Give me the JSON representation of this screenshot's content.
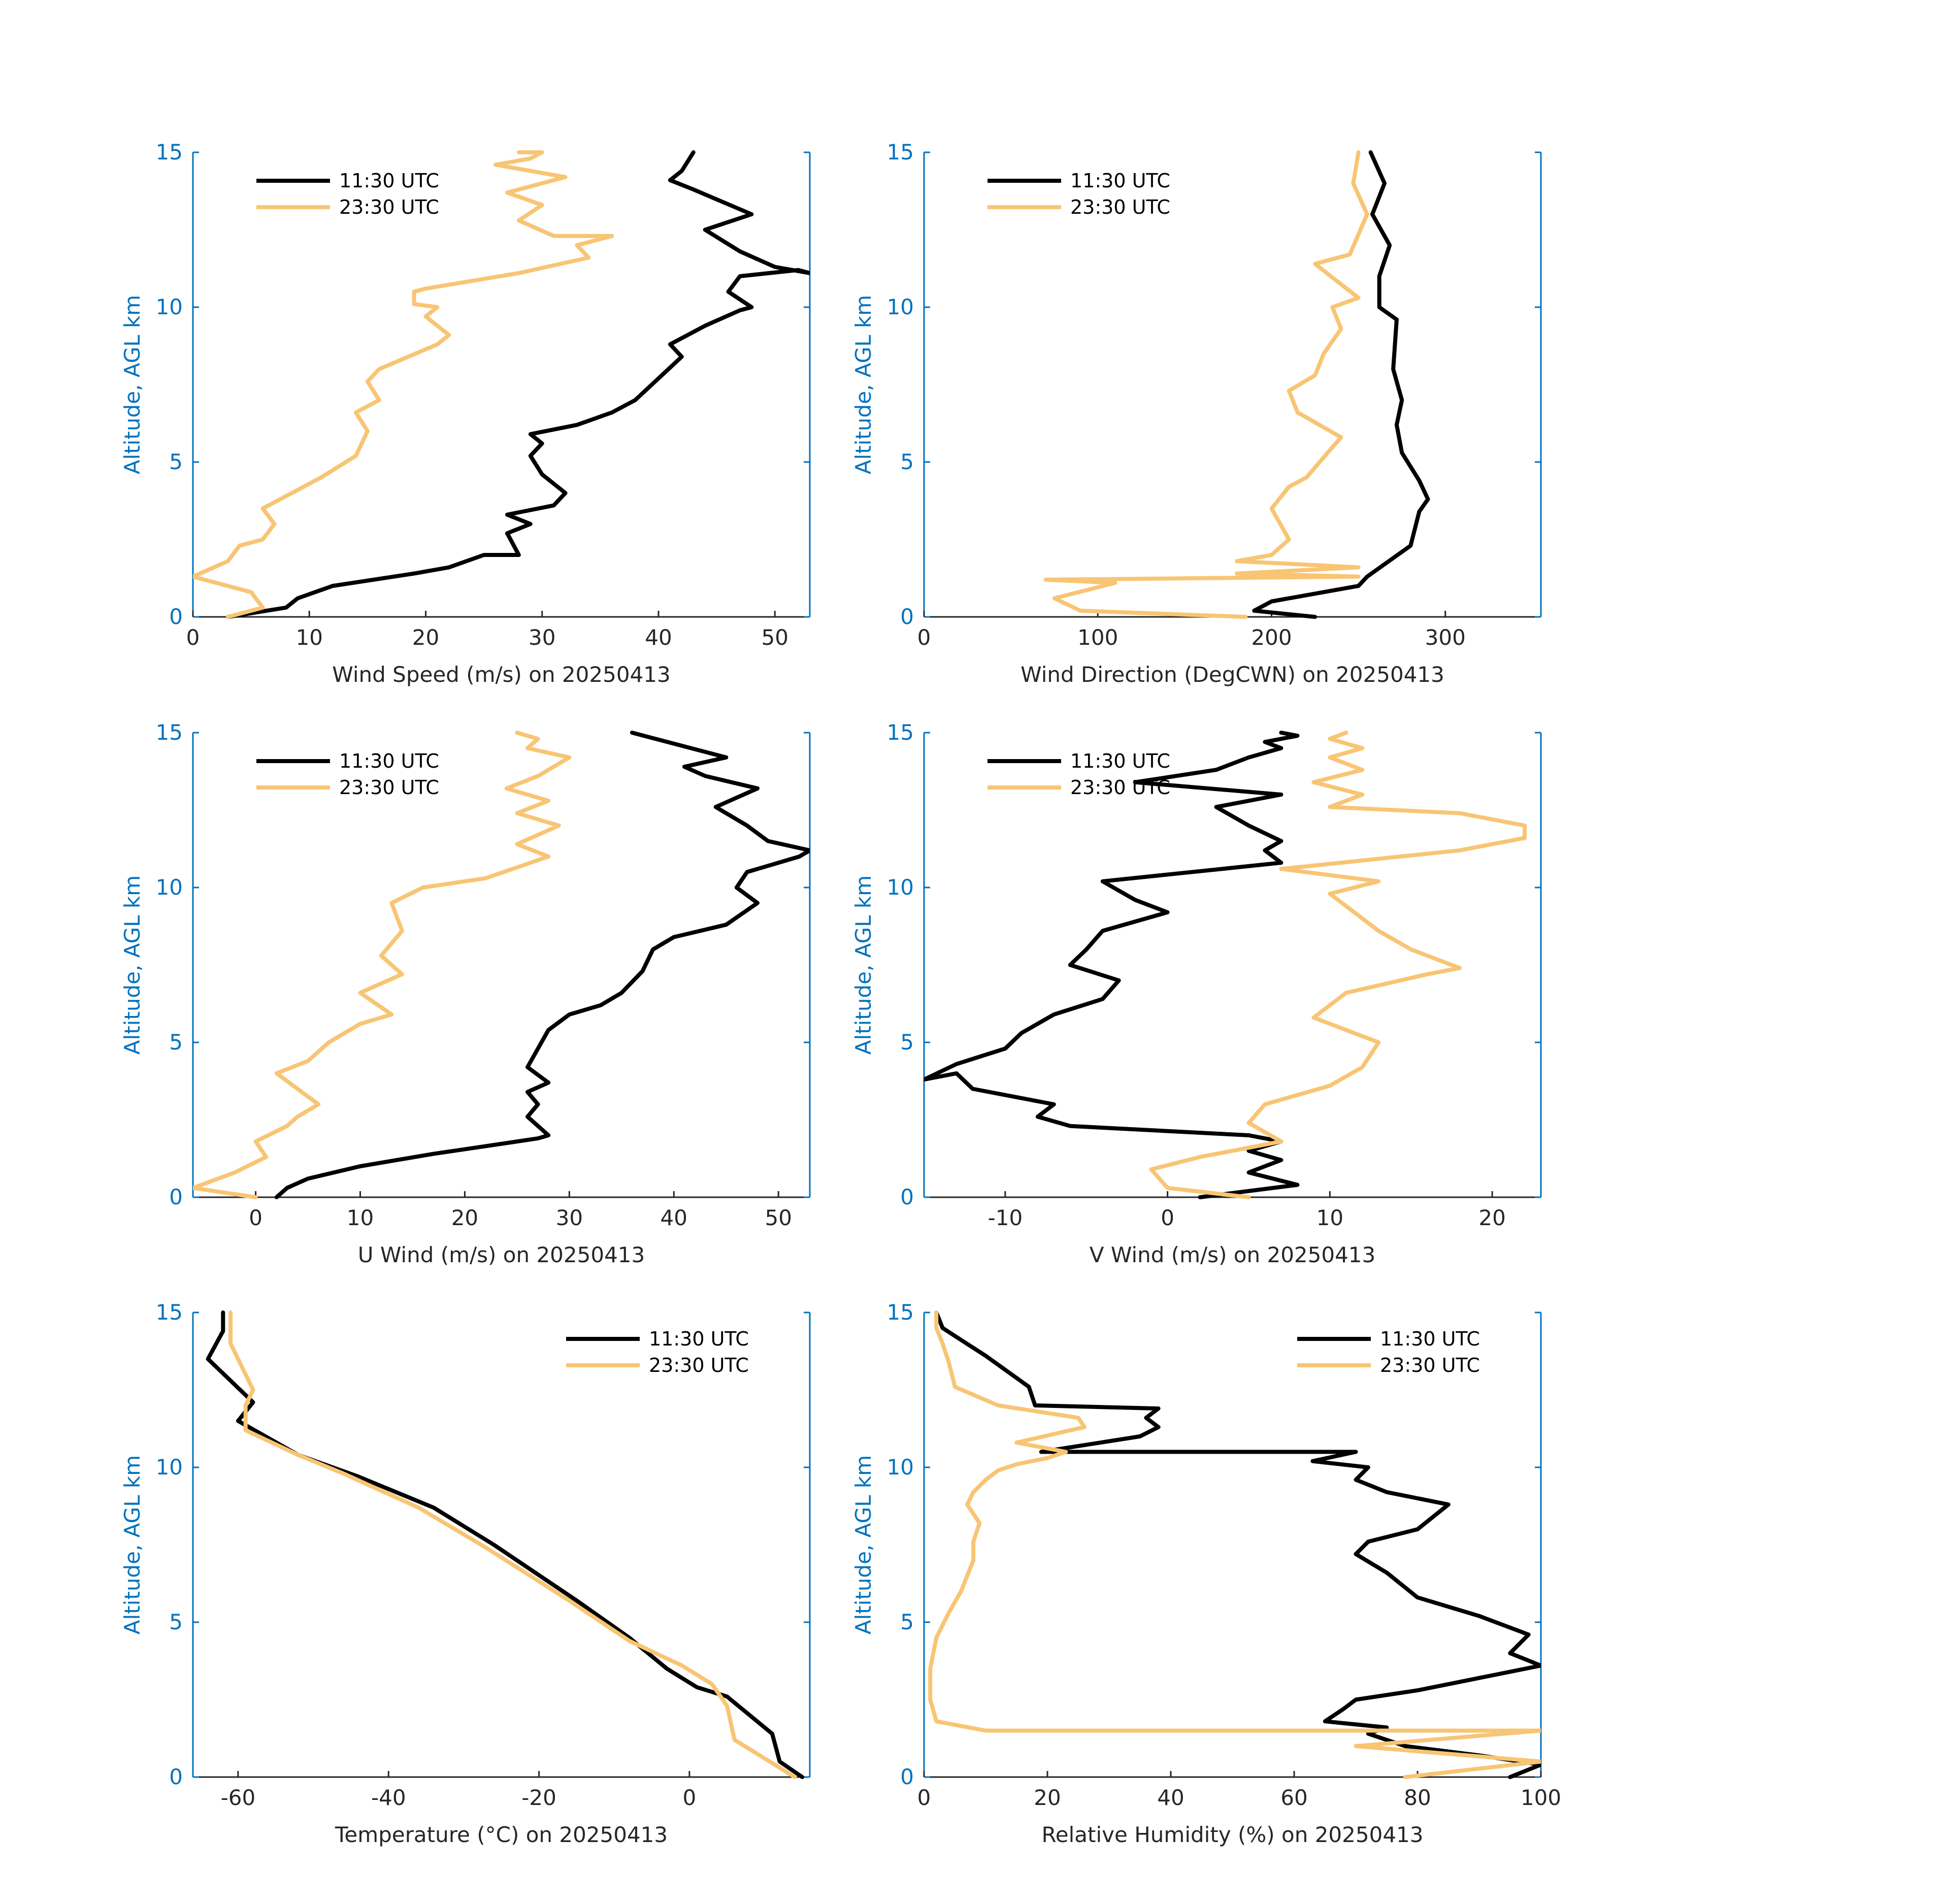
{
  "figure": {
    "date": "20250413",
    "axis_color": "#0072bd",
    "tick_text_color": "#262626"
  },
  "legend_labels": [
    "11:30 UTC",
    "23:30 UTC"
  ],
  "series_colors": {
    "11:30 UTC": "#000000",
    "23:30 UTC": "#f8c574"
  },
  "chart_data": [
    {
      "type": "line",
      "id": "wind-speed",
      "title": "",
      "xlabel": "Wind Speed (m/s) on 20250413",
      "ylabel": "Altitude, AGL km",
      "xlim": [
        0,
        53
      ],
      "ylim": [
        0,
        15
      ],
      "xticks": [
        0,
        10,
        20,
        30,
        40,
        50
      ],
      "yticks": [
        0,
        5,
        10,
        15
      ],
      "legend": "top-left",
      "series": [
        {
          "name": "11:30 UTC",
          "color": "#000000",
          "x": [
            3,
            8,
            9,
            12,
            19,
            22,
            25,
            28,
            27,
            29,
            27,
            31,
            32,
            30,
            29,
            30,
            29,
            33,
            36,
            38,
            42,
            41,
            44,
            47,
            48,
            46,
            47,
            52,
            53,
            50,
            47,
            44,
            48,
            43,
            41,
            42,
            43
          ],
          "y": [
            0,
            0.3,
            0.6,
            1.0,
            1.4,
            1.6,
            2.0,
            2.0,
            2.7,
            3.0,
            3.3,
            3.6,
            4.0,
            4.6,
            5.2,
            5.6,
            5.9,
            6.2,
            6.6,
            7.0,
            8.4,
            8.8,
            9.4,
            9.9,
            10.0,
            10.5,
            11.0,
            11.2,
            11.1,
            11.3,
            11.8,
            12.5,
            13.0,
            13.8,
            14.1,
            14.4,
            15.0
          ]
        },
        {
          "name": "23:30 UTC",
          "color": "#f8c574",
          "x": [
            3,
            6,
            5,
            0,
            3,
            4,
            6,
            7,
            6,
            8,
            11,
            14,
            15,
            14,
            16,
            15,
            16,
            21,
            22,
            20,
            21,
            19,
            19,
            20,
            28,
            34,
            33,
            36,
            31,
            28,
            30,
            27,
            32,
            26,
            29,
            30,
            28
          ],
          "y": [
            0,
            0.3,
            0.8,
            1.3,
            1.8,
            2.3,
            2.5,
            3.0,
            3.5,
            3.9,
            4.5,
            5.2,
            6.0,
            6.6,
            7.0,
            7.6,
            8.0,
            8.8,
            9.1,
            9.7,
            10.0,
            10.1,
            10.5,
            10.6,
            11.1,
            11.6,
            12.0,
            12.3,
            12.3,
            12.8,
            13.3,
            13.7,
            14.2,
            14.6,
            14.8,
            15.0,
            15.0
          ]
        }
      ]
    },
    {
      "type": "line",
      "id": "wind-direction",
      "title": "",
      "xlabel": "Wind Direction (DegCWN) on 20250413",
      "ylabel": "Altitude, AGL km",
      "xlim": [
        0,
        355
      ],
      "ylim": [
        0,
        15
      ],
      "xticks": [
        0,
        100,
        200,
        300
      ],
      "yticks": [
        0,
        5,
        10,
        15
      ],
      "legend": "top-left",
      "series": [
        {
          "name": "11:30 UTC",
          "color": "#000000",
          "x": [
            225,
            190,
            200,
            250,
            255,
            265,
            280,
            285,
            290,
            285,
            275,
            272,
            275,
            270,
            272,
            262,
            262,
            268,
            258,
            265,
            257
          ],
          "y": [
            0,
            0.2,
            0.5,
            1.0,
            1.3,
            1.7,
            2.3,
            3.4,
            3.8,
            4.4,
            5.3,
            6.2,
            7.0,
            8.0,
            9.6,
            10.0,
            11.0,
            12.0,
            13.0,
            14.0,
            15.0
          ]
        },
        {
          "name": "23:30 UTC",
          "color": "#f8c574",
          "x": [
            185,
            90,
            75,
            110,
            70,
            250,
            180,
            250,
            180,
            200,
            210,
            200,
            210,
            220,
            240,
            215,
            210,
            225,
            230,
            240,
            235,
            250,
            225,
            245,
            255,
            247,
            250
          ],
          "y": [
            0,
            0.2,
            0.6,
            1.1,
            1.2,
            1.3,
            1.4,
            1.6,
            1.8,
            2.0,
            2.5,
            3.5,
            4.2,
            4.5,
            5.8,
            6.6,
            7.3,
            7.8,
            8.5,
            9.3,
            10.0,
            10.3,
            11.4,
            11.7,
            13.0,
            14.0,
            15.0
          ]
        }
      ]
    },
    {
      "type": "line",
      "id": "u-wind",
      "title": "",
      "xlabel": "U Wind (m/s) on 20250413",
      "ylabel": "Altitude, AGL km",
      "xlim": [
        -6,
        53
      ],
      "ylim": [
        0,
        15
      ],
      "xticks": [
        0,
        10,
        20,
        30,
        40,
        50
      ],
      "yticks": [
        0,
        5,
        10,
        15
      ],
      "legend": "top-left",
      "series": [
        {
          "name": "11:30 UTC",
          "color": "#000000",
          "x": [
            2,
            3,
            5,
            10,
            17,
            21,
            27,
            28,
            26,
            27,
            26,
            28,
            26,
            27,
            28,
            30,
            33,
            35,
            37,
            38,
            40,
            45,
            48,
            46,
            47,
            52,
            53,
            49,
            47,
            44,
            48,
            43,
            41,
            45,
            36
          ],
          "y": [
            0,
            0.3,
            0.6,
            1.0,
            1.4,
            1.6,
            1.9,
            2.0,
            2.6,
            3.0,
            3.4,
            3.7,
            4.2,
            4.8,
            5.4,
            5.9,
            6.2,
            6.6,
            7.3,
            8.0,
            8.4,
            8.8,
            9.5,
            10.0,
            10.5,
            11.0,
            11.2,
            11.5,
            12.0,
            12.6,
            13.2,
            13.6,
            13.9,
            14.2,
            15.0
          ]
        },
        {
          "name": "23:30 UTC",
          "color": "#f8c574",
          "x": [
            0,
            -6,
            -2,
            1,
            0,
            3,
            4,
            6,
            4,
            2,
            5,
            7,
            10,
            13,
            10,
            14,
            12,
            14,
            13,
            16,
            22,
            28,
            25,
            29,
            25,
            28,
            24,
            27,
            30,
            26,
            27,
            25
          ],
          "y": [
            0,
            0.3,
            0.8,
            1.3,
            1.8,
            2.3,
            2.6,
            3.0,
            3.5,
            4.0,
            4.4,
            5.0,
            5.6,
            5.9,
            6.6,
            7.2,
            7.8,
            8.6,
            9.5,
            10.0,
            10.3,
            11.0,
            11.4,
            12.0,
            12.4,
            12.8,
            13.2,
            13.6,
            14.2,
            14.5,
            14.8,
            15.0
          ]
        }
      ]
    },
    {
      "type": "line",
      "id": "v-wind",
      "title": "",
      "xlabel": "V Wind (m/s) on 20250413",
      "ylabel": "Altitude, AGL km",
      "xlim": [
        -15,
        23
      ],
      "ylim": [
        0,
        15
      ],
      "xticks": [
        -10,
        0,
        10,
        20
      ],
      "yticks": [
        0,
        5,
        10,
        15
      ],
      "legend": "top-left",
      "series": [
        {
          "name": "11:30 UTC",
          "color": "#000000",
          "x": [
            2,
            8,
            5,
            7,
            5,
            7,
            5,
            -6,
            -8,
            -7,
            -12,
            -13,
            -15,
            -13,
            -10,
            -9,
            -7,
            -4,
            -3,
            -6,
            -5,
            -4,
            0,
            -2,
            -4,
            7,
            6,
            7,
            5,
            3,
            7,
            -2,
            3,
            5,
            7,
            6,
            8,
            7
          ],
          "y": [
            0,
            0.4,
            0.8,
            1.2,
            1.5,
            1.8,
            2.0,
            2.3,
            2.6,
            3.0,
            3.5,
            4.0,
            3.8,
            4.3,
            4.8,
            5.3,
            5.9,
            6.4,
            7.0,
            7.5,
            8.0,
            8.6,
            9.2,
            9.6,
            10.2,
            10.8,
            11.2,
            11.5,
            12.0,
            12.6,
            13.0,
            13.4,
            13.8,
            14.2,
            14.5,
            14.7,
            14.9,
            15.0
          ]
        },
        {
          "name": "23:30 UTC",
          "color": "#f8c574",
          "x": [
            5,
            0,
            -1,
            2,
            7,
            5,
            6,
            10,
            12,
            13,
            9,
            11,
            16,
            18,
            15,
            13,
            10,
            13,
            7,
            18,
            22,
            22,
            18,
            10,
            12,
            9,
            12,
            10,
            12,
            10,
            11
          ],
          "y": [
            0,
            0.3,
            0.9,
            1.3,
            1.8,
            2.4,
            3.0,
            3.6,
            4.2,
            5.0,
            5.8,
            6.6,
            7.2,
            7.4,
            8.0,
            8.6,
            9.8,
            10.2,
            10.6,
            11.2,
            11.6,
            12.0,
            12.4,
            12.6,
            13.0,
            13.4,
            13.8,
            14.2,
            14.5,
            14.8,
            15.0
          ]
        }
      ]
    },
    {
      "type": "line",
      "id": "temperature",
      "title": "",
      "xlabel": "Temperature (°C) on 20250413",
      "ylabel": "Altitude, AGL km",
      "xlim": [
        -66,
        16
      ],
      "ylim": [
        0,
        15
      ],
      "xticks": [
        -60,
        -40,
        -20,
        0
      ],
      "yticks": [
        0,
        5,
        10,
        15
      ],
      "legend": "top-right",
      "series": [
        {
          "name": "11:30 UTC",
          "color": "#000000",
          "x": [
            15,
            12,
            11,
            7,
            5,
            1,
            -3,
            -8,
            -15,
            -26,
            -34,
            -44,
            -52,
            -60,
            -58,
            -61,
            -64,
            -62,
            -62
          ],
          "y": [
            0,
            0.5,
            1.4,
            2.2,
            2.6,
            2.9,
            3.5,
            4.5,
            5.7,
            7.5,
            8.7,
            9.7,
            10.4,
            11.5,
            12.1,
            12.8,
            13.5,
            14.4,
            15.0
          ]
        },
        {
          "name": "23:30 UTC",
          "color": "#f8c574",
          "x": [
            14,
            10,
            6,
            5,
            3,
            -1,
            -8,
            -16,
            -27,
            -36,
            -46,
            -52,
            -59,
            -59,
            -58,
            -61,
            -61
          ],
          "y": [
            0,
            0.6,
            1.2,
            2.3,
            3.0,
            3.6,
            4.4,
            5.7,
            7.4,
            8.7,
            9.8,
            10.4,
            11.2,
            12.0,
            12.5,
            14.0,
            15.0
          ]
        }
      ]
    },
    {
      "type": "line",
      "id": "relative-humidity",
      "title": "",
      "xlabel": "Relative Humidity (%) on 20250413",
      "ylabel": "Altitude, AGL km",
      "xlim": [
        0,
        100
      ],
      "ylim": [
        0,
        15
      ],
      "xticks": [
        0,
        20,
        40,
        60,
        80,
        100
      ],
      "yticks": [
        0,
        5,
        10,
        15
      ],
      "legend": "top-right",
      "series": [
        {
          "name": "11:30 UTC",
          "color": "#000000",
          "x": [
            95,
            100,
            90,
            78,
            72,
            75,
            65,
            68,
            70,
            80,
            90,
            100,
            95,
            98,
            90,
            80,
            75,
            70,
            72,
            80,
            85,
            75,
            70,
            72,
            63,
            70,
            19,
            35,
            38,
            36,
            38,
            18,
            17,
            10,
            3,
            2
          ],
          "y": [
            0,
            0.4,
            0.7,
            1.0,
            1.4,
            1.6,
            1.8,
            2.2,
            2.5,
            2.8,
            3.2,
            3.6,
            4.0,
            4.6,
            5.2,
            5.8,
            6.6,
            7.2,
            7.6,
            8.0,
            8.8,
            9.2,
            9.6,
            10.0,
            10.2,
            10.5,
            10.5,
            11.0,
            11.3,
            11.6,
            11.9,
            12.0,
            12.6,
            13.6,
            14.5,
            15.0
          ]
        },
        {
          "name": "23:30 UTC",
          "color": "#f8c574",
          "x": [
            78,
            100,
            70,
            100,
            10,
            2,
            1,
            1,
            2,
            4,
            6,
            8,
            8,
            9,
            7,
            8,
            10,
            12,
            15,
            20,
            23,
            15,
            26,
            25,
            12,
            5,
            4,
            3,
            2,
            2
          ],
          "y": [
            0,
            0.5,
            1.0,
            1.5,
            1.5,
            1.8,
            2.5,
            3.5,
            4.5,
            5.3,
            6.0,
            7.0,
            7.6,
            8.2,
            8.8,
            9.2,
            9.6,
            9.9,
            10.1,
            10.3,
            10.5,
            10.8,
            11.3,
            11.6,
            12.0,
            12.6,
            13.4,
            14.0,
            14.5,
            15.0
          ]
        }
      ]
    }
  ]
}
